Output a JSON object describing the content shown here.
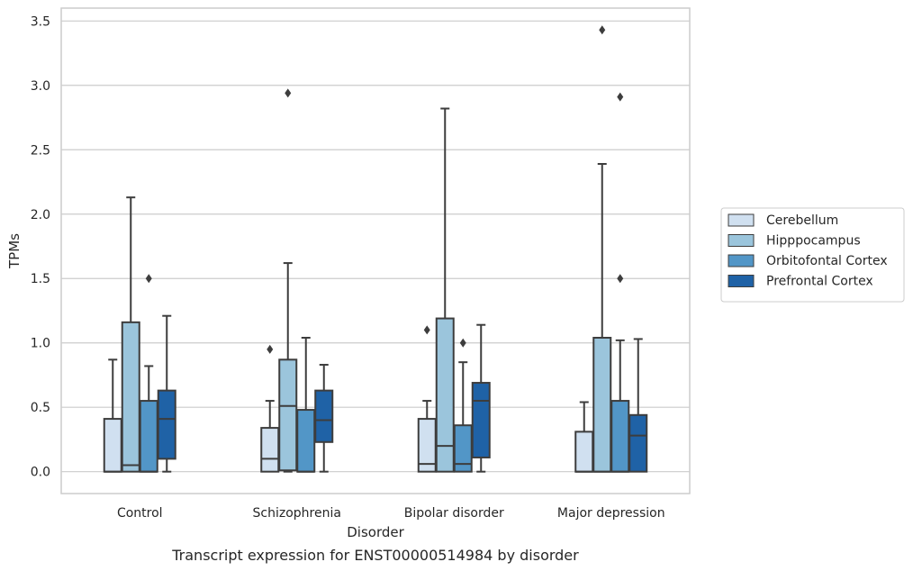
{
  "caption": "Transcript expression for ENST00000514984 by disorder",
  "chart_data": {
    "type": "box",
    "xlabel": "Disorder",
    "ylabel": "TPMs",
    "ylim": [
      -0.17,
      3.6
    ],
    "y_ticks": [
      "0.0",
      "0.5",
      "1.0",
      "1.5",
      "2.0",
      "2.5",
      "3.0",
      "3.5"
    ],
    "y_tick_values": [
      0,
      0.5,
      1.0,
      1.5,
      2.0,
      2.5,
      3.0,
      3.5
    ],
    "grid": "horizontal",
    "legend_position": "right",
    "categories": [
      "Control",
      "Schizophrenia",
      "Bipolar disorder",
      "Major depression"
    ],
    "series": [
      {
        "name": "Cerebellum",
        "color": "#d0e0f0",
        "boxes": [
          {
            "whisker_low": 0.0,
            "q1": 0.0,
            "median": 0.0,
            "q3": 0.41,
            "whisker_high": 0.87,
            "outliers": []
          },
          {
            "whisker_low": 0.0,
            "q1": 0.0,
            "median": 0.1,
            "q3": 0.34,
            "whisker_high": 0.55,
            "outliers": [
              0.95
            ]
          },
          {
            "whisker_low": 0.0,
            "q1": 0.0,
            "median": 0.06,
            "q3": 0.41,
            "whisker_high": 0.55,
            "outliers": [
              1.1
            ]
          },
          {
            "whisker_low": 0.0,
            "q1": 0.0,
            "median": 0.0,
            "q3": 0.31,
            "whisker_high": 0.54,
            "outliers": []
          }
        ]
      },
      {
        "name": "Hipppocampus",
        "color": "#9bc5dc",
        "boxes": [
          {
            "whisker_low": 0.0,
            "q1": 0.0,
            "median": 0.05,
            "q3": 1.16,
            "whisker_high": 2.13,
            "outliers": []
          },
          {
            "whisker_low": 0.0,
            "q1": 0.01,
            "median": 0.51,
            "q3": 0.87,
            "whisker_high": 1.62,
            "outliers": [
              2.94
            ]
          },
          {
            "whisker_low": 0.0,
            "q1": 0.0,
            "median": 0.2,
            "q3": 1.19,
            "whisker_high": 2.82,
            "outliers": []
          },
          {
            "whisker_low": 0.0,
            "q1": 0.0,
            "median": 0.0,
            "q3": 1.04,
            "whisker_high": 2.39,
            "outliers": [
              3.43
            ]
          }
        ]
      },
      {
        "name": "Orbitofontal Cortex",
        "color": "#5296c7",
        "boxes": [
          {
            "whisker_low": 0.0,
            "q1": 0.0,
            "median": 0.0,
            "q3": 0.55,
            "whisker_high": 0.82,
            "outliers": [
              1.5
            ]
          },
          {
            "whisker_low": 0.0,
            "q1": 0.0,
            "median": 0.0,
            "q3": 0.48,
            "whisker_high": 1.04,
            "outliers": []
          },
          {
            "whisker_low": 0.0,
            "q1": 0.0,
            "median": 0.06,
            "q3": 0.36,
            "whisker_high": 0.85,
            "outliers": [
              1.0
            ]
          },
          {
            "whisker_low": 0.0,
            "q1": 0.0,
            "median": 0.0,
            "q3": 0.55,
            "whisker_high": 1.02,
            "outliers": [
              1.5,
              2.91
            ]
          }
        ]
      },
      {
        "name": "Prefrontal Cortex",
        "color": "#1f62a6",
        "boxes": [
          {
            "whisker_low": 0.0,
            "q1": 0.1,
            "median": 0.41,
            "q3": 0.63,
            "whisker_high": 1.21,
            "outliers": []
          },
          {
            "whisker_low": 0.0,
            "q1": 0.23,
            "median": 0.4,
            "q3": 0.63,
            "whisker_high": 0.83,
            "outliers": []
          },
          {
            "whisker_low": 0.0,
            "q1": 0.11,
            "median": 0.55,
            "q3": 0.69,
            "whisker_high": 1.14,
            "outliers": []
          },
          {
            "whisker_low": 0.0,
            "q1": 0.0,
            "median": 0.28,
            "q3": 0.44,
            "whisker_high": 1.03,
            "outliers": []
          }
        ]
      }
    ]
  }
}
